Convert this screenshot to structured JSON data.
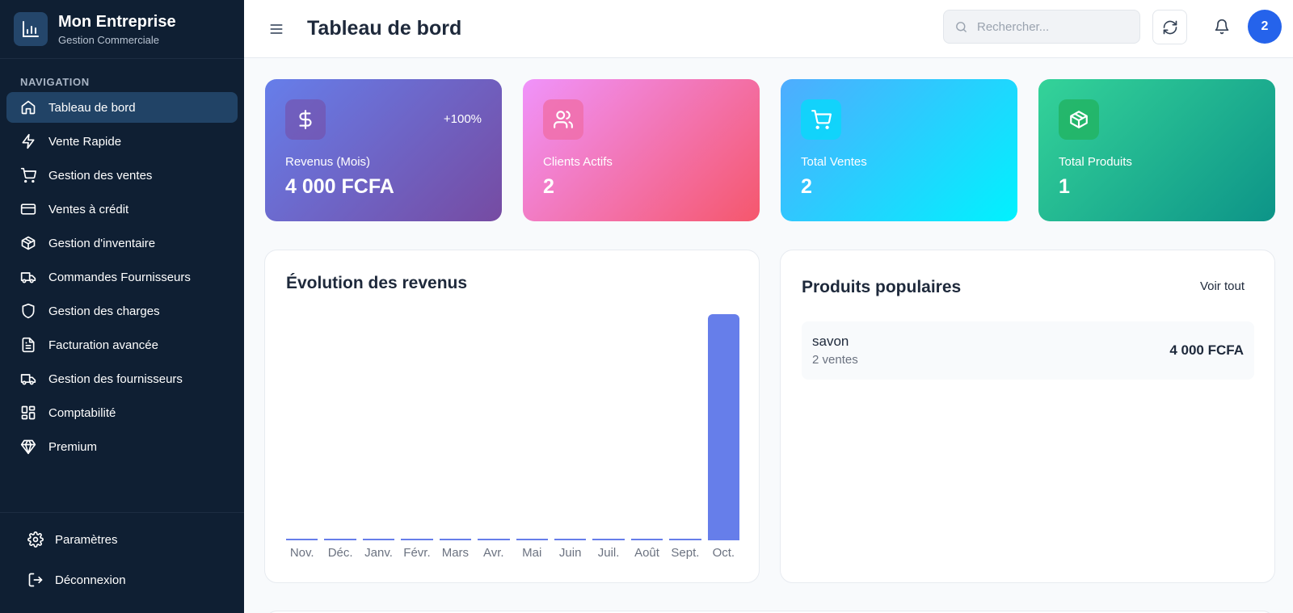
{
  "brand": {
    "title": "Mon Entreprise",
    "subtitle": "Gestion Commerciale",
    "logo_icon": "bar-chart-icon"
  },
  "sidebar": {
    "section_label": "NAVIGATION",
    "items": [
      {
        "label": "Tableau de bord",
        "icon": "home-icon",
        "active": true
      },
      {
        "label": "Vente Rapide",
        "icon": "zap-icon"
      },
      {
        "label": "Gestion des ventes",
        "icon": "cart-icon"
      },
      {
        "label": "Ventes à crédit",
        "icon": "credit-card-icon"
      },
      {
        "label": "Gestion d'inventaire",
        "icon": "package-icon"
      },
      {
        "label": "Commandes Fournisseurs",
        "icon": "truck-icon"
      },
      {
        "label": "Gestion des charges",
        "icon": "shield-icon"
      },
      {
        "label": "Facturation avancée",
        "icon": "file-text-icon"
      },
      {
        "label": "Gestion des fournisseurs",
        "icon": "truck-icon"
      },
      {
        "label": "Comptabilité",
        "icon": "layout-grid-icon"
      },
      {
        "label": "Premium",
        "icon": "gem-icon"
      }
    ],
    "bottom": [
      {
        "label": "Paramètres",
        "icon": "gear-icon"
      },
      {
        "label": "Déconnexion",
        "icon": "logout-icon"
      }
    ]
  },
  "header": {
    "title": "Tableau de bord",
    "search_placeholder": "Rechercher...",
    "search_value": "",
    "avatar_text": "2"
  },
  "stats": [
    {
      "label": "Revenus (Mois)",
      "value": "4 000 FCFA",
      "badge": "+100%",
      "icon": "dollar-icon"
    },
    {
      "label": "Clients Actifs",
      "value": "2",
      "icon": "users-icon"
    },
    {
      "label": "Total Ventes",
      "value": "2",
      "icon": "cart-icon"
    },
    {
      "label": "Total Produits",
      "value": "1",
      "icon": "package-icon"
    }
  ],
  "revenue_chart": {
    "title": "Évolution des revenus",
    "bar_color": "#667eea"
  },
  "chart_data": {
    "type": "bar",
    "title": "Évolution des revenus",
    "categories": [
      "Nov.",
      "Déc.",
      "Janv.",
      "Févr.",
      "Mars",
      "Avr.",
      "Mai",
      "Juin",
      "Juil.",
      "Août",
      "Sept.",
      "Oct."
    ],
    "values": [
      0,
      0,
      0,
      0,
      0,
      0,
      0,
      0,
      0,
      0,
      0,
      4000
    ],
    "xlabel": "",
    "ylabel": "",
    "ylim": [
      0,
      4000
    ],
    "grid": false,
    "legend": "none"
  },
  "popular_products": {
    "title": "Produits populaires",
    "see_all": "Voir tout",
    "items": [
      {
        "name": "savon",
        "sales": "2 ventes",
        "amount": "4 000 FCFA"
      }
    ]
  },
  "colors": {
    "sidebar_bg": "#0f1f33",
    "active_item": "#214366",
    "accent": "#2563eb"
  }
}
